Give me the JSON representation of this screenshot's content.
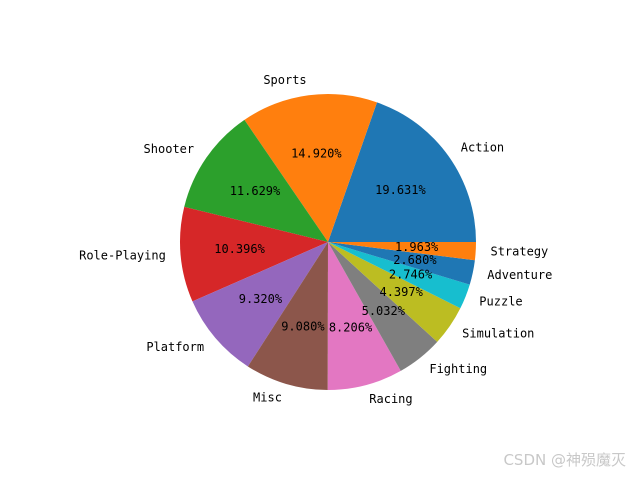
{
  "chart_data": {
    "type": "pie",
    "title": "",
    "start_angle_deg": 0,
    "direction": "counterclockwise",
    "categories": [
      "Action",
      "Sports",
      "Shooter",
      "Role-Playing",
      "Platform",
      "Misc",
      "Racing",
      "Fighting",
      "Simulation",
      "Puzzle",
      "Adventure",
      "Strategy"
    ],
    "values": [
      19.631,
      14.92,
      11.629,
      10.396,
      9.32,
      9.08,
      8.206,
      5.032,
      4.397,
      2.746,
      2.68,
      1.963
    ],
    "value_labels": [
      "19.631%",
      "14.920%",
      "11.629%",
      "10.396%",
      "9.320%",
      "9.080%",
      "8.206%",
      "5.032%",
      "4.397%",
      "2.746%",
      "2.680%",
      "1.963%"
    ],
    "colors": [
      "#1f77b4",
      "#ff7f0e",
      "#2ca02c",
      "#d62728",
      "#9467bd",
      "#8c564b",
      "#e377c2",
      "#7f7f7f",
      "#bcbd22",
      "#17becf",
      "#1f77b4",
      "#ff7f0e"
    ]
  },
  "watermark": "CSDN @神殒魔灭"
}
